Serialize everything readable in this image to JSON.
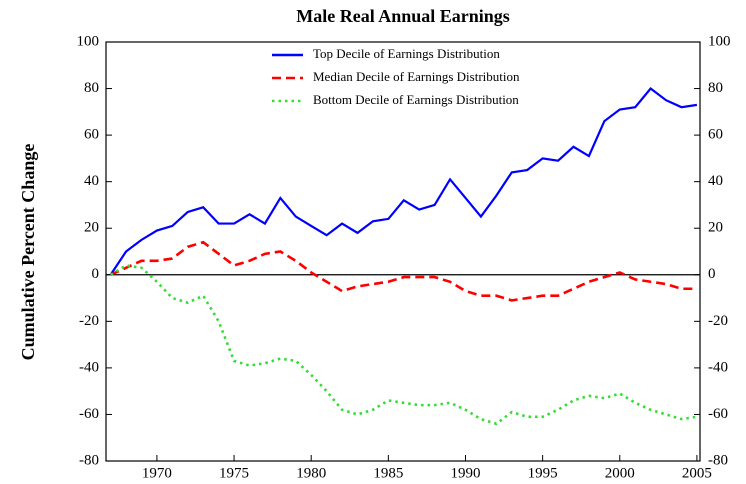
{
  "chart_data": {
    "type": "line",
    "title": "Male Real Annual Earnings",
    "y_label": "Cumulative Percent Change",
    "x": [
      1967,
      1968,
      1969,
      1970,
      1971,
      1972,
      1973,
      1974,
      1975,
      1976,
      1977,
      1978,
      1979,
      1980,
      1981,
      1982,
      1983,
      1984,
      1985,
      1986,
      1987,
      1988,
      1989,
      1990,
      1991,
      1992,
      1993,
      1994,
      1995,
      1996,
      1997,
      1998,
      1999,
      2000,
      2001,
      2002,
      2003,
      2004,
      2005
    ],
    "series": [
      {
        "name": "Top Decile of Earnings Distribution",
        "color": "#0000ff",
        "style": "solid",
        "values": [
          0,
          10,
          15,
          19,
          21,
          27,
          29,
          22,
          22,
          26,
          22,
          33,
          25,
          21,
          17,
          22,
          18,
          23,
          24,
          32,
          28,
          30,
          41,
          33,
          25,
          34,
          44,
          45,
          50,
          49,
          55,
          51,
          66,
          71,
          72,
          80,
          75,
          72,
          73
        ]
      },
      {
        "name": "Median Decile of Earnings Distribution",
        "color": "#ff0000",
        "style": "dashed",
        "values": [
          0,
          3,
          6,
          6,
          7,
          12,
          14,
          9,
          4,
          6,
          9,
          10,
          6,
          1,
          -3,
          -7,
          -5,
          -4,
          -3,
          -1,
          -1,
          -1,
          -3,
          -7,
          -9,
          -9,
          -11,
          -10,
          -9,
          -9,
          -6,
          -3,
          -1,
          1,
          -2,
          -3,
          -4,
          -6,
          -6
        ]
      },
      {
        "name": "Bottom Decile of Earnings Distribution",
        "color": "#33dd33",
        "style": "dotted",
        "values": [
          0,
          4,
          3,
          -3,
          -10,
          -12,
          -9,
          -20,
          -37,
          -39,
          -38,
          -36,
          -37,
          -43,
          -50,
          -58,
          -60,
          -58,
          -54,
          -55,
          -56,
          -56,
          -55,
          -58,
          -62,
          -64,
          -59,
          -61,
          -61,
          -58,
          -54,
          -52,
          -53,
          -51,
          -55,
          -58,
          -60,
          -62,
          -61
        ]
      }
    ],
    "xlim": [
      1966.7,
      2005.2
    ],
    "xticks": [
      1970,
      1975,
      1980,
      1985,
      1990,
      1995,
      2000,
      2005
    ],
    "ylim": [
      -80,
      100
    ],
    "yticks": [
      -80,
      -60,
      -40,
      -20,
      0,
      20,
      40,
      60,
      80,
      100
    ],
    "y2lim": [
      -80,
      100
    ],
    "y2ticks": [
      -80,
      -60,
      -40,
      -20,
      0,
      20,
      40,
      60,
      80,
      100
    ],
    "reference_line": 0,
    "legend": "top"
  }
}
